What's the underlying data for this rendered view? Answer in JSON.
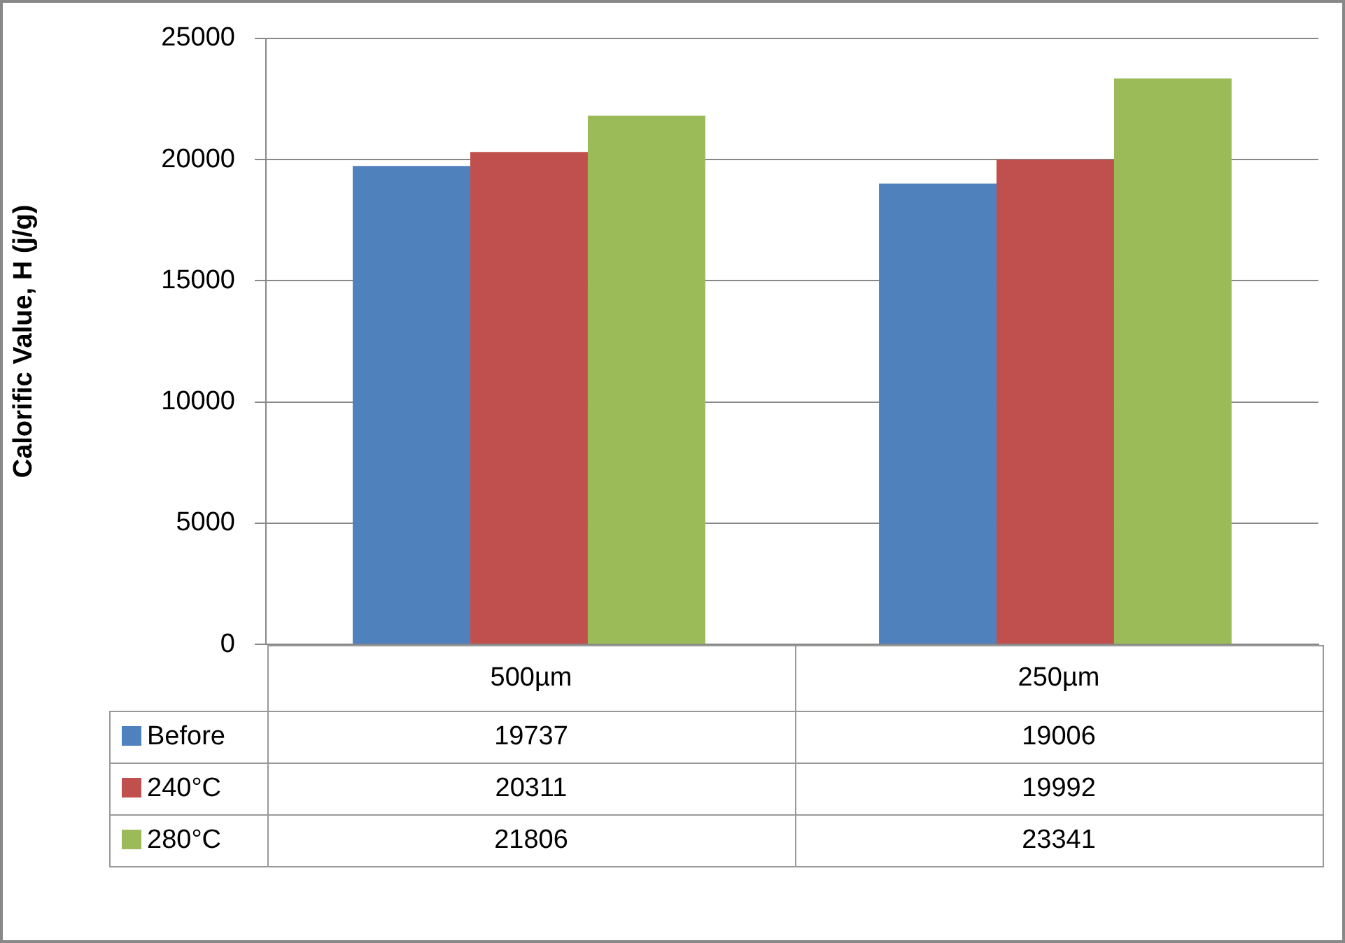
{
  "chart_data": {
    "type": "bar",
    "ylabel": "Calorific Value, H (j/g)",
    "categories": [
      "500µm",
      "250µm"
    ],
    "series": [
      {
        "name": "Before",
        "color": "#4f81bd",
        "values": [
          19737,
          19006
        ]
      },
      {
        "name": "240°C",
        "color": "#c0504d",
        "values": [
          20311,
          19992
        ]
      },
      {
        "name": "280°C",
        "color": "#9bbb59",
        "values": [
          21806,
          23341
        ]
      }
    ],
    "ylim": [
      0,
      25000
    ],
    "yticks": [
      0,
      5000,
      10000,
      15000,
      20000,
      25000
    ],
    "grid": "y",
    "legend": "bottom",
    "data_labels": true
  }
}
